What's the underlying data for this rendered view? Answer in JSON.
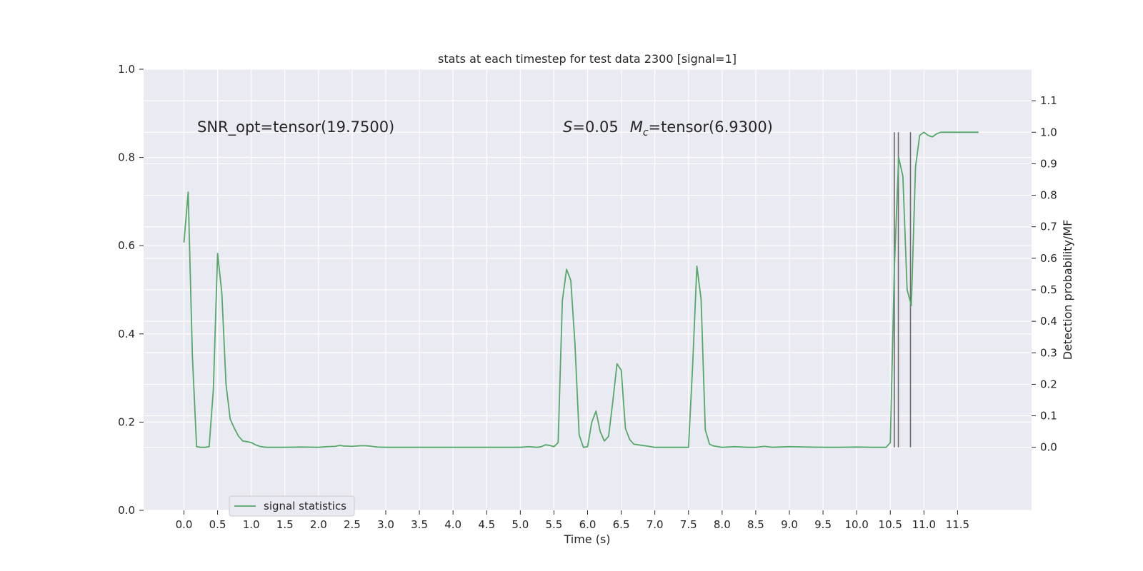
{
  "chart_data": {
    "type": "line",
    "title": "stats at each timestep for test data 2300 [signal=1]",
    "xlabel": "Time (s)",
    "ylabel": "",
    "ylabel_right": "Detection probability/MF",
    "xlim": [
      -0.6,
      12.6
    ],
    "ylim": [
      0.0,
      1.0
    ],
    "ylim_right": [
      -0.2,
      1.2
    ],
    "x_ticks": [
      "0.0",
      "0.5",
      "1.0",
      "1.5",
      "2.0",
      "2.5",
      "3.0",
      "3.5",
      "4.0",
      "4.5",
      "5.0",
      "5.5",
      "6.0",
      "6.5",
      "7.0",
      "7.5",
      "8.0",
      "8.5",
      "9.0",
      "9.5",
      "10.0",
      "10.5",
      "11.0",
      "11.5"
    ],
    "y_ticks_left": [
      "0.0",
      "0.2",
      "0.4",
      "0.6",
      "0.8",
      "1.0"
    ],
    "y_ticks_right": [
      "0.0",
      "0.1",
      "0.2",
      "0.3",
      "0.4",
      "0.5",
      "0.6",
      "0.7",
      "0.8",
      "0.9",
      "1.0",
      "1.1"
    ],
    "grid": true,
    "legend_position": "lower-left",
    "annotations": {
      "snr": "SNR_opt=tensor(19.7500)",
      "s_prefix": "S",
      "s_value": "=0.05",
      "mc_prefix": "M",
      "mc_sub": "c",
      "mc_value": "=tensor(6.9300)"
    },
    "series": [
      {
        "name": "signal statistics",
        "color": "#55a868",
        "axis": "right",
        "x": [
          0.0,
          0.0625,
          0.125,
          0.1875,
          0.25,
          0.3125,
          0.375,
          0.4375,
          0.5,
          0.5625,
          0.625,
          0.6875,
          0.75,
          0.8125,
          0.875,
          0.9375,
          1.0,
          1.0625,
          1.125,
          1.1875,
          1.25,
          1.5,
          1.75,
          2.0,
          2.125,
          2.25,
          2.3125,
          2.375,
          2.5,
          2.625,
          2.6875,
          2.75,
          2.875,
          3.0,
          3.5,
          4.0,
          4.5,
          5.0,
          5.125,
          5.25,
          5.3125,
          5.375,
          5.4375,
          5.5,
          5.5625,
          5.625,
          5.6875,
          5.75,
          5.8125,
          5.875,
          5.9375,
          6.0,
          6.0625,
          6.125,
          6.1875,
          6.25,
          6.3125,
          6.375,
          6.4375,
          6.5,
          6.5625,
          6.625,
          6.6875,
          6.75,
          6.875,
          7.0,
          7.25,
          7.5,
          7.5625,
          7.625,
          7.6875,
          7.75,
          7.8125,
          7.875,
          8.0,
          8.1875,
          8.375,
          8.5,
          8.625,
          8.75,
          9.0,
          9.25,
          9.5,
          9.75,
          10.0,
          10.25,
          10.4375,
          10.5,
          10.5625,
          10.625,
          10.6875,
          10.75,
          10.8125,
          10.875,
          10.9375,
          11.0,
          11.0625,
          11.125,
          11.1875,
          11.25,
          11.5,
          11.75,
          11.8125
        ],
        "y": [
          0.65,
          0.81,
          0.29,
          0.002,
          0.0,
          0.0,
          0.002,
          0.185,
          0.615,
          0.49,
          0.2,
          0.09,
          0.06,
          0.035,
          0.02,
          0.018,
          0.015,
          0.008,
          0.003,
          0.001,
          0.0,
          0.0,
          0.001,
          0.0,
          0.002,
          0.003,
          0.006,
          0.004,
          0.003,
          0.005,
          0.005,
          0.004,
          0.001,
          0.0,
          0.0,
          0.0,
          0.0,
          0.0,
          0.002,
          0.0,
          0.002,
          0.008,
          0.006,
          0.002,
          0.015,
          0.465,
          0.565,
          0.53,
          0.33,
          0.04,
          0.0,
          0.002,
          0.08,
          0.115,
          0.05,
          0.02,
          0.035,
          0.145,
          0.265,
          0.245,
          0.06,
          0.025,
          0.01,
          0.008,
          0.004,
          0.0,
          0.0,
          0.0,
          0.26,
          0.575,
          0.47,
          0.055,
          0.01,
          0.004,
          0.0,
          0.002,
          0.0,
          0.0,
          0.003,
          0.0,
          0.002,
          0.001,
          0.0,
          0.0,
          0.001,
          0.0,
          0.0,
          0.015,
          0.58,
          0.92,
          0.86,
          0.5,
          0.45,
          0.89,
          0.99,
          1.0,
          0.99,
          0.985,
          0.995,
          1.0,
          1.0,
          1.0,
          1.0
        ]
      }
    ],
    "vlines": [
      {
        "x": 10.56,
        "color": "#6b6b6b"
      },
      {
        "x": 10.62,
        "color": "#6b6b6b"
      },
      {
        "x": 10.8,
        "color": "#6b6b6b"
      }
    ],
    "colors": {
      "plot_background": "#eaeaf2",
      "grid": "#ffffff",
      "text": "#262626"
    }
  }
}
